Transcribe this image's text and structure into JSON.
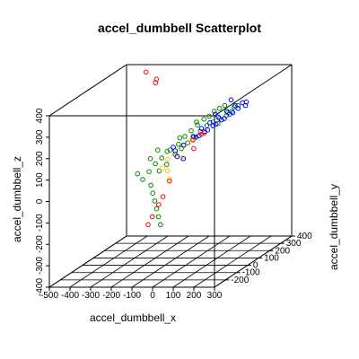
{
  "chart_data": {
    "type": "scatter",
    "title": "accel_dumbbell Scatterplot",
    "xlabel": "accel_dumbbell_x",
    "ylabel": "accel_dumbbell_y",
    "zlabel": "accel_dumbbell_z",
    "xlim": [
      -500,
      300
    ],
    "ylim": [
      -300,
      400
    ],
    "zlim": [
      -400,
      400
    ],
    "x_ticks": [
      -500,
      -400,
      -300,
      -200,
      -100,
      0,
      100,
      200,
      300
    ],
    "y_ticks": [
      -200,
      -100,
      0,
      100,
      200,
      300,
      400
    ],
    "z_ticks": [
      -400,
      -300,
      -200,
      -100,
      0,
      100,
      200,
      300,
      400
    ],
    "grid": "xy floor plane",
    "legend": "none",
    "point_marker": "open circle",
    "series": [
      {
        "color": "#008800",
        "points": [
          [
            -180,
            120,
            60
          ],
          [
            -150,
            140,
            90
          ],
          [
            -120,
            160,
            110
          ],
          [
            -100,
            180,
            140
          ],
          [
            -80,
            200,
            160
          ],
          [
            -60,
            220,
            180
          ],
          [
            -40,
            240,
            200
          ],
          [
            -20,
            250,
            210
          ],
          [
            0,
            260,
            230
          ],
          [
            20,
            270,
            240
          ],
          [
            40,
            280,
            250
          ],
          [
            -200,
            100,
            40
          ],
          [
            -220,
            80,
            10
          ],
          [
            -240,
            60,
            -20
          ],
          [
            -160,
            60,
            20
          ],
          [
            -140,
            90,
            40
          ],
          [
            -110,
            110,
            80
          ],
          [
            -90,
            130,
            100
          ],
          [
            -70,
            150,
            120
          ],
          [
            -50,
            170,
            140
          ],
          [
            -30,
            190,
            160
          ],
          [
            -10,
            210,
            180
          ],
          [
            10,
            230,
            190
          ],
          [
            30,
            250,
            200
          ],
          [
            60,
            270,
            220
          ],
          [
            80,
            290,
            240
          ],
          [
            -190,
            40,
            -40
          ],
          [
            -170,
            20,
            -70
          ],
          [
            -150,
            0,
            -100
          ],
          [
            -130,
            -20,
            -130
          ],
          [
            -110,
            -40,
            -160
          ],
          [
            -90,
            -60,
            -190
          ],
          [
            -170,
            150,
            80
          ],
          [
            -130,
            190,
            130
          ],
          [
            -70,
            230,
            190
          ],
          [
            -260,
            50,
            10
          ],
          [
            -230,
            110,
            60
          ],
          [
            -210,
            140,
            90
          ],
          [
            120,
            250,
            260
          ],
          [
            100,
            230,
            240
          ],
          [
            90,
            200,
            230
          ],
          [
            60,
            180,
            200
          ]
        ]
      },
      {
        "color": "#ffcc00",
        "points": [
          [
            -140,
            100,
            60
          ],
          [
            -110,
            120,
            80
          ],
          [
            -80,
            140,
            110
          ],
          [
            -60,
            170,
            130
          ],
          [
            -120,
            60,
            20
          ],
          [
            -100,
            40,
            -10
          ],
          [
            -70,
            90,
            70
          ],
          [
            -150,
            70,
            30
          ]
        ]
      },
      {
        "color": "#0000ff",
        "points": [
          [
            -90,
            150,
            110
          ],
          [
            -60,
            180,
            140
          ],
          [
            -30,
            200,
            170
          ],
          [
            0,
            220,
            190
          ],
          [
            30,
            240,
            210
          ],
          [
            60,
            260,
            230
          ],
          [
            90,
            280,
            250
          ],
          [
            120,
            290,
            260
          ],
          [
            -120,
            130,
            90
          ],
          [
            -100,
            110,
            70
          ],
          [
            -40,
            170,
            140
          ],
          [
            -10,
            190,
            160
          ],
          [
            20,
            210,
            180
          ],
          [
            50,
            230,
            200
          ],
          [
            80,
            250,
            220
          ],
          [
            110,
            270,
            240
          ],
          [
            140,
            280,
            250
          ],
          [
            -20,
            160,
            150
          ],
          [
            10,
            180,
            170
          ],
          [
            40,
            200,
            190
          ],
          [
            70,
            220,
            210
          ],
          [
            100,
            240,
            230
          ],
          [
            -140,
            150,
            100
          ],
          [
            -70,
            110,
            60
          ],
          [
            10,
            250,
            220
          ],
          [
            60,
            300,
            270
          ],
          [
            150,
            270,
            270
          ]
        ]
      },
      {
        "color": "#ff0000",
        "points": [
          [
            -50,
            160,
            130
          ],
          [
            -20,
            180,
            150
          ],
          [
            -30,
            130,
            100
          ],
          [
            -100,
            40,
            -20
          ],
          [
            -110,
            0,
            -80
          ],
          [
            -120,
            -20,
            -110
          ],
          [
            -280,
            260,
            380
          ],
          [
            -290,
            270,
            360
          ],
          [
            -320,
            240,
            420
          ],
          [
            -140,
            -40,
            -160
          ],
          [
            -150,
            -60,
            -190
          ],
          [
            0,
            170,
            160
          ]
        ]
      }
    ]
  }
}
